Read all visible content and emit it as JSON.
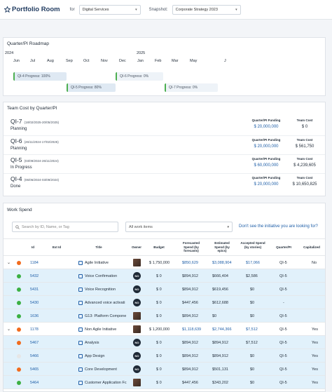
{
  "header": {
    "app_title": "Portfolio Room",
    "for_label": "for",
    "for_value": "Digital Services",
    "snapshot_label": "Snapshot:",
    "snapshot_value": "Corporate Strategy 2023"
  },
  "roadmap": {
    "title": "Quarter/PI Roadmap",
    "years": [
      "2024",
      "2025"
    ],
    "months": [
      "Jun",
      "Jul",
      "Aug",
      "Sep",
      "Oct",
      "Nov",
      "Dec",
      "Jan",
      "Feb",
      "Mar",
      "May",
      "J"
    ],
    "bars": [
      {
        "label": "QI-4 Progress: 100%",
        "progress": 100
      },
      {
        "label": "QI-6 Progress: 0%",
        "progress": 0
      },
      {
        "label": "QI-5 Progress: 80%",
        "progress": 80
      },
      {
        "label": "QI-7 Progress: 0%",
        "progress": 0
      }
    ]
  },
  "team_cost": {
    "title": "Team Cost by Quarter/PI",
    "funding_header": "Quarter/PI Funding",
    "cost_header": "Team Cost",
    "rows": [
      {
        "name": "QI-7",
        "dates": "(18/02/2025-20/05/2025)",
        "status": "Planning",
        "funding": "$ 20,000,000",
        "cost": "$ 0"
      },
      {
        "name": "QI-6",
        "dates": "(26/11/2024-17/02/2025)",
        "status": "Planning",
        "funding": "$ 20,000,000",
        "cost": "$ 561,750"
      },
      {
        "name": "QI-5",
        "dates": "(03/09/2024-26/11/2024)",
        "status": "In Progress",
        "funding": "$ 60,000,000",
        "cost": "$ 4,239,605"
      },
      {
        "name": "QI-4",
        "dates": "(06/06/2024-03/09/2024)",
        "status": "Done",
        "funding": "$ 20,000,000",
        "cost": "$ 10,650,825"
      }
    ]
  },
  "work_spend": {
    "title": "Work Spend",
    "search_placeholder": "Search by ID, Name, or Tag",
    "filter_value": "All work items",
    "help_link": "Don't see the initiative you are looking for?",
    "columns": {
      "id": "Id",
      "ext": "Ext Id",
      "title": "Title",
      "owner": "Owner",
      "budget": "Budget",
      "forecast": "Forecasted Spend (by forecasts)",
      "estimated": "Estimated Spend (by epics)",
      "accepted": "Accepted Spend (by stories)",
      "pi": "Quarter/PI",
      "capitalized": "Capitalized"
    },
    "rows": [
      {
        "kind": "parent",
        "dot": "#f26b1d",
        "id": "1184",
        "title": "Agile Initiative",
        "owner": "avatar",
        "budget": "$ 1,750,000",
        "forecast": "$850,629",
        "estimated": "$3,088,904",
        "accepted": "$17,066",
        "pi": "QI-5",
        "cap": "No"
      },
      {
        "kind": "child",
        "dot": "#3cb043",
        "id": "5432",
        "title": "Voice Confirmation",
        "owner": "NO",
        "budget": "$ 0",
        "forecast": "$894,912",
        "estimated": "$666,404",
        "accepted": "$2,586",
        "pi": "QI-5",
        "cap": ""
      },
      {
        "kind": "child",
        "dot": "#3cb043",
        "id": "5431",
        "title": "Voice Recognition",
        "owner": "NO",
        "budget": "$ 0",
        "forecast": "$894,912",
        "estimated": "$619,456",
        "accepted": "$0",
        "pi": "QI-5",
        "cap": ""
      },
      {
        "kind": "child",
        "dot": "#3cb043",
        "id": "5430",
        "title": "Advanced voice activati",
        "owner": "NO",
        "budget": "$ 0",
        "forecast": "$447,456",
        "estimated": "$612,688",
        "accepted": "$0",
        "pi": "-",
        "cap": ""
      },
      {
        "kind": "child",
        "dot": "#3cb043",
        "id": "1636",
        "title": "G13: Platform Compone",
        "owner": "avatar",
        "budget": "$ 0",
        "forecast": "$894,912",
        "estimated": "$0",
        "accepted": "$0",
        "pi": "QI-5",
        "cap": ""
      },
      {
        "kind": "parent",
        "dot": "#f26b1d",
        "id": "1178",
        "title": "Non Agile Initiative",
        "owner": "avatar",
        "budget": "$ 1,200,000",
        "forecast": "$1,118,639",
        "estimated": "$2,744,366",
        "accepted": "$7,512",
        "pi": "QI-5",
        "cap": "Yes"
      },
      {
        "kind": "child",
        "dot": "#f26b1d",
        "id": "5467",
        "title": "Analysis",
        "owner": "NO",
        "budget": "$ 0",
        "forecast": "$894,912",
        "estimated": "$894,912",
        "accepted": "$7,512",
        "pi": "QI-5",
        "cap": "Yes"
      },
      {
        "kind": "child",
        "dot": "#e6e6e6",
        "id": "5466",
        "title": "App Design",
        "owner": "NO",
        "budget": "$ 0",
        "forecast": "$894,912",
        "estimated": "$894,912",
        "accepted": "$0",
        "pi": "QI-5",
        "cap": "Yes"
      },
      {
        "kind": "child",
        "dot": "#f26b1d",
        "id": "5465",
        "title": "Core Development",
        "owner": "NO",
        "budget": "$ 0",
        "forecast": "$894,912",
        "estimated": "$501,131",
        "accepted": "$0",
        "pi": "QI-5",
        "cap": "Yes"
      },
      {
        "kind": "child",
        "dot": "#3cb043",
        "id": "5464",
        "title": "Customer Application Fc",
        "owner": "avatar",
        "budget": "$ 0",
        "forecast": "$447,456",
        "estimated": "$343,202",
        "accepted": "$0",
        "pi": "QI-5",
        "cap": "Yes"
      }
    ]
  }
}
